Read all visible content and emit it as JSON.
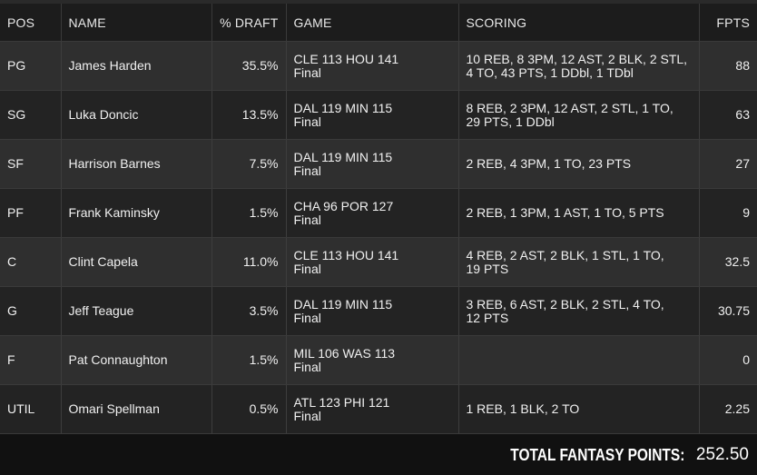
{
  "headers": {
    "pos": "POS",
    "name": "NAME",
    "draft": "% DRAFT",
    "game": "GAME",
    "scoring": "SCORING",
    "fpts": "FPTS"
  },
  "rows": [
    {
      "pos": "PG",
      "name": "James Harden",
      "draft": "35.5%",
      "game1": "CLE 113 HOU 141",
      "game2": "Final",
      "scoring1": "10 REB, 8 3PM, 12 AST, 2 BLK, 2 STL,",
      "scoring2": "4 TO, 43 PTS, 1 DDbl, 1 TDbl",
      "fpts": "88"
    },
    {
      "pos": "SG",
      "name": "Luka Doncic",
      "draft": "13.5%",
      "game1": "DAL 119 MIN 115",
      "game2": "Final",
      "scoring1": "8 REB, 2 3PM, 12 AST, 2 STL, 1 TO,",
      "scoring2": "29 PTS, 1 DDbl",
      "fpts": "63"
    },
    {
      "pos": "SF",
      "name": "Harrison Barnes",
      "draft": "7.5%",
      "game1": "DAL 119 MIN 115",
      "game2": "Final",
      "scoring1": "2 REB, 4 3PM, 1 TO, 23 PTS",
      "scoring2": "",
      "fpts": "27"
    },
    {
      "pos": "PF",
      "name": "Frank Kaminsky",
      "draft": "1.5%",
      "game1": "CHA 96 POR 127",
      "game2": "Final",
      "scoring1": "2 REB, 1 3PM, 1 AST, 1 TO, 5 PTS",
      "scoring2": "",
      "fpts": "9"
    },
    {
      "pos": "C",
      "name": "Clint Capela",
      "draft": "11.0%",
      "game1": "CLE 113 HOU 141",
      "game2": "Final",
      "scoring1": "4 REB, 2 AST, 2 BLK, 1 STL, 1 TO,",
      "scoring2": "19 PTS",
      "fpts": "32.5"
    },
    {
      "pos": "G",
      "name": "Jeff Teague",
      "draft": "3.5%",
      "game1": "DAL 119 MIN 115",
      "game2": "Final",
      "scoring1": "3 REB, 6 AST, 2 BLK, 2 STL, 4 TO,",
      "scoring2": "12 PTS",
      "fpts": "30.75"
    },
    {
      "pos": "F",
      "name": "Pat Connaughton",
      "draft": "1.5%",
      "game1": "MIL 106 WAS 113",
      "game2": "Final",
      "scoring1": "",
      "scoring2": "",
      "fpts": "0"
    },
    {
      "pos": "UTIL",
      "name": "Omari Spellman",
      "draft": "0.5%",
      "game1": "ATL 123 PHI 121",
      "game2": "Final",
      "scoring1": "1 REB, 1 BLK, 2 TO",
      "scoring2": "",
      "fpts": "2.25"
    }
  ],
  "footer": {
    "label": "TOTAL FANTASY POINTS:",
    "value": "252.50"
  },
  "colors": {
    "name_accent": "#9bd423",
    "row_odd": "#2f2f2f",
    "row_even": "#232323"
  }
}
